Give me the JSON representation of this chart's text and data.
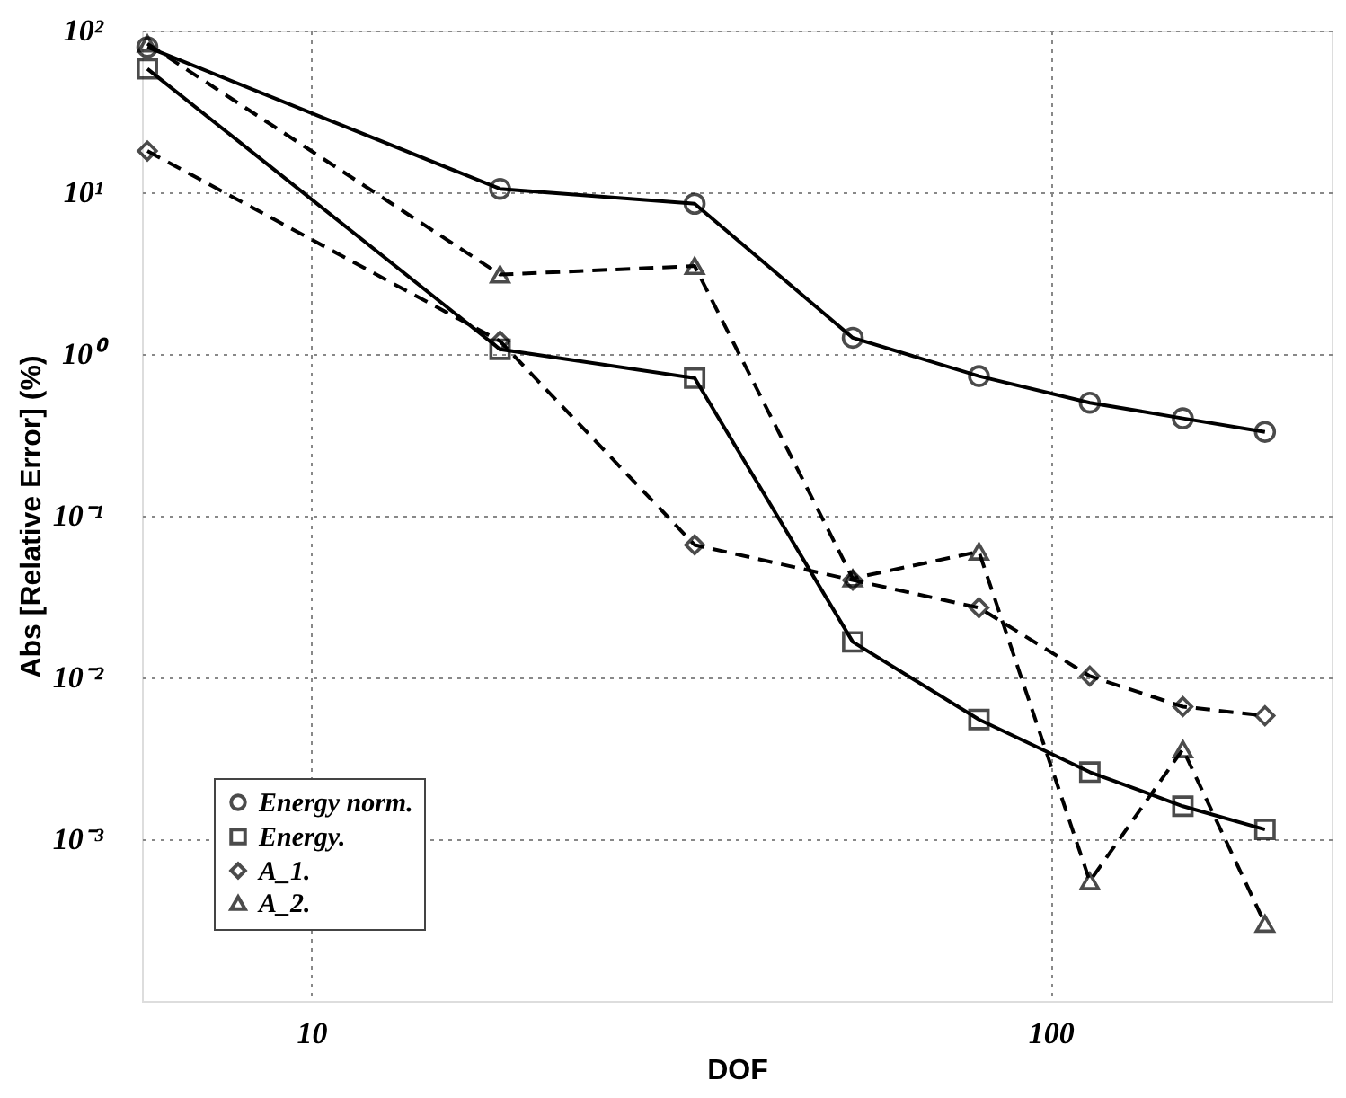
{
  "chart_data": {
    "type": "line",
    "xlabel": "DOF",
    "ylabel": "Abs [Relative Error] (%)",
    "x": [
      6,
      18,
      33,
      54,
      80,
      113,
      151,
      195
    ],
    "series": [
      {
        "name": "Energy norm.",
        "color": "#000000",
        "marker": "circle",
        "line_style": "solid",
        "values": [
          79,
          10.5,
          8.5,
          1.26,
          0.73,
          0.5,
          0.4,
          0.33
        ]
      },
      {
        "name": "Energy.",
        "color": "#000000",
        "marker": "square",
        "line_style": "solid",
        "values": [
          58,
          1.07,
          0.71,
          0.0166,
          0.0055,
          0.0026,
          0.0016,
          0.00115
        ]
      },
      {
        "name": "A_1.",
        "color": "#000000",
        "marker": "diamond",
        "line_style": "dashed",
        "values": [
          18,
          1.2,
          0.066,
          0.04,
          0.027,
          0.0102,
          0.0066,
          0.0058
        ]
      },
      {
        "name": "A_2.",
        "color": "#000000",
        "marker": "triangle",
        "line_style": "dashed",
        "values": [
          83,
          3.1,
          3.5,
          0.041,
          0.06,
          0.00055,
          0.0036,
          0.0003
        ]
      }
    ],
    "log": "xy",
    "xlim": [
      5.9,
      240
    ],
    "ylim": [
      0.0001,
      100
    ],
    "xticks": [
      10,
      100
    ],
    "yticks": [
      {
        "value": 100,
        "label": "10²"
      },
      {
        "value": 10,
        "label": "10¹"
      },
      {
        "value": 1,
        "label": "10⁰"
      },
      {
        "value": 0.1,
        "label": "10⁻¹"
      },
      {
        "value": 0.01,
        "label": "10⁻²"
      },
      {
        "value": 0.001,
        "label": "10⁻³"
      }
    ],
    "grid": true,
    "legend": "bottom left"
  }
}
